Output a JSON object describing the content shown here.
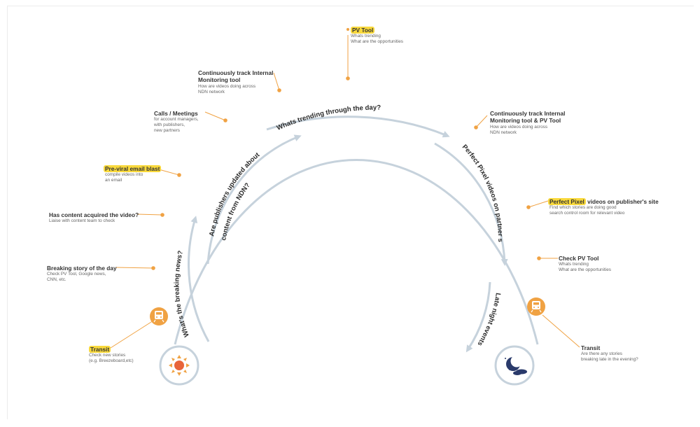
{
  "colors": {
    "arc": "#c6d2dc",
    "accent": "#f0a243",
    "highlight": "#f9d93c",
    "title_text": "#333333",
    "sub_text": "#666666",
    "moon_navy": "#2a3a6b"
  },
  "flow_labels": {
    "breaking_news": "What's the breaking news?",
    "publishers_line1": "Are publishers updated about",
    "publishers_line2": "content from NDN?",
    "trending_day": "Whats trending through the day?",
    "perfect_pixel": "Perfect Pixel videos on partner sites",
    "late_night": "Late night events"
  },
  "annotations": {
    "transit_morning": {
      "title": "Transit",
      "lines": [
        "Check new stories",
        "(e.g. Breezeboard,etc)"
      ]
    },
    "breaking_story": {
      "title": "Breaking story of the day",
      "lines": [
        "Check PV Tool, Google news,",
        "CNN, etc."
      ]
    },
    "content_acquired": {
      "title": "Has content acquired the video?",
      "lines": [
        "Liaise with content team to check"
      ]
    },
    "pre_viral": {
      "title": "Pre-viral email blast",
      "lines": [
        "compile videos into",
        "an email"
      ]
    },
    "calls_meetings": {
      "title": "Calls / Meetings",
      "lines": [
        "for account managers,",
        "with publishers,",
        "new partners"
      ]
    },
    "continuous_internal": {
      "title_line1": "Continuously track Internal",
      "title_line2": "Monitoring tool",
      "lines": [
        "How are videos doing across",
        "NDN network"
      ]
    },
    "pv_tool_top": {
      "title": "PV Tool",
      "lines": [
        "Whats trending",
        "What are the opportunities"
      ]
    },
    "continuous_internal_pv": {
      "title_line1": "Continuously track Internal",
      "title_line2": "Monitoring tool & PV Tool",
      "lines": [
        "How are videos doing across",
        "NDN network"
      ]
    },
    "perfect_pixel": {
      "title_highlight": "Perfect Pixel",
      "title_rest": " videos on publisher's site",
      "lines": [
        "Find which stories are doing good",
        "search control room for relevant video"
      ]
    },
    "check_pv_tool": {
      "title": "Check PV Tool",
      "lines": [
        "Whats trending",
        "What are the opportunities"
      ]
    },
    "transit_evening": {
      "title": "Transit",
      "lines": [
        "Are there any stories",
        "breaking late in the evening?"
      ]
    }
  },
  "icons": {
    "sun": "sun-icon",
    "moon": "moon-icon",
    "train_morning": "train-icon",
    "train_evening": "train-icon"
  }
}
